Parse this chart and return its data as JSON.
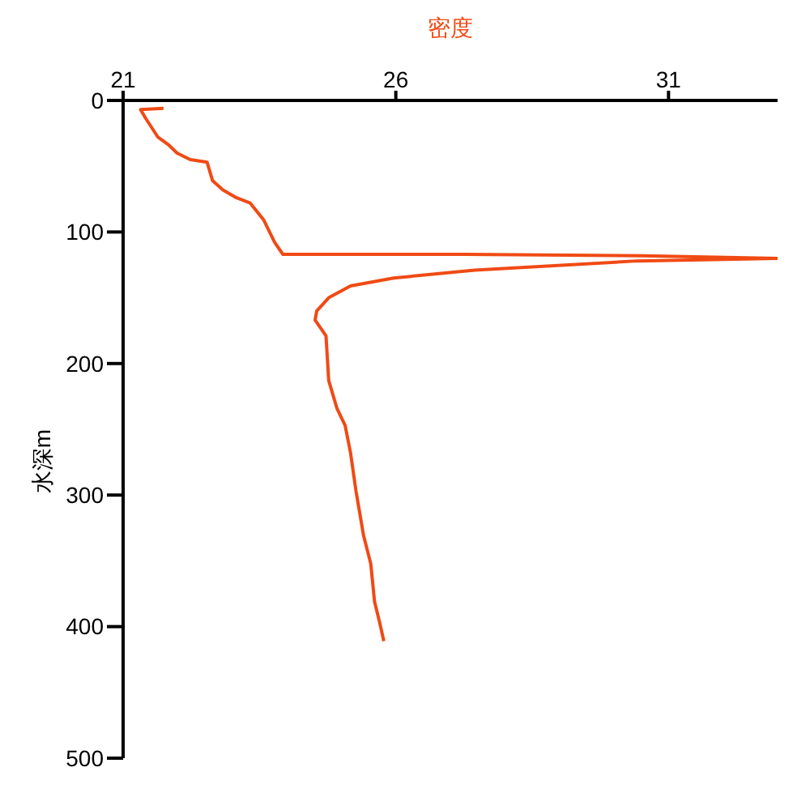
{
  "chart_data": {
    "type": "line",
    "xlabel": "密度",
    "ylabel": "水深m",
    "xlim": [
      21,
      33
    ],
    "xticks": [
      21,
      26,
      31
    ],
    "ylim": [
      500,
      0
    ],
    "yticks": [
      0,
      100,
      200,
      300,
      400,
      500
    ],
    "grid": false,
    "legend": false,
    "marker": "none",
    "line_style": "solid",
    "series": [
      {
        "color": "#f04a14",
        "x": [
          21.74,
          21.32,
          21.42,
          21.64,
          21.84,
          21.99,
          22.23,
          22.54,
          22.64,
          22.83,
          23.08,
          23.33,
          23.58,
          23.78,
          23.93,
          27.25,
          30.52,
          33,
          30.42,
          27.45,
          25.96,
          25.17,
          24.77,
          24.55,
          24.52,
          24.72,
          24.77,
          24.92,
          25.07,
          25.17,
          25.27,
          25.41,
          25.54,
          25.61,
          25.71,
          25.78
        ],
        "values": [
          6,
          7,
          14,
          28,
          34,
          40,
          45,
          47,
          61,
          68,
          74,
          78,
          91,
          108,
          117,
          117,
          118,
          120,
          122,
          129,
          135,
          141,
          150,
          160,
          167,
          179,
          213,
          234,
          247,
          268,
          297,
          331,
          352,
          381,
          398,
          411
        ]
      }
    ]
  }
}
